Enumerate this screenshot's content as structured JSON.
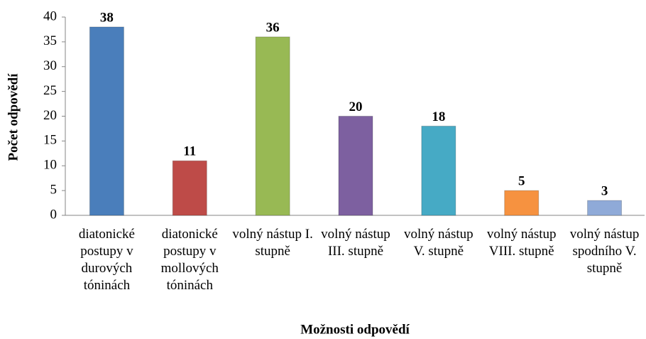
{
  "chart_data": {
    "type": "bar",
    "x_label": "Možnosti odpovědí",
    "y_label": "Počet odpovědí",
    "categories": [
      "diatonické postupy v durových tóninách",
      "diatonické postupy v mollových tóninách",
      "volný nástup I. stupně",
      "volný nástup III. stupně",
      "volný nástup V. stupně",
      "volný nástup VIII. stupně",
      "volný nástup spodního V. stupně"
    ],
    "values": [
      38,
      11,
      36,
      20,
      18,
      5,
      3
    ],
    "colors": [
      "#4a7ebb",
      "#be4b48",
      "#98b954",
      "#7d60a0",
      "#46aac5",
      "#f69240",
      "#8faad8"
    ],
    "ylim": [
      0,
      40
    ],
    "yticks": [
      0,
      5,
      10,
      15,
      20,
      25,
      30,
      35,
      40
    ],
    "grid": false
  }
}
